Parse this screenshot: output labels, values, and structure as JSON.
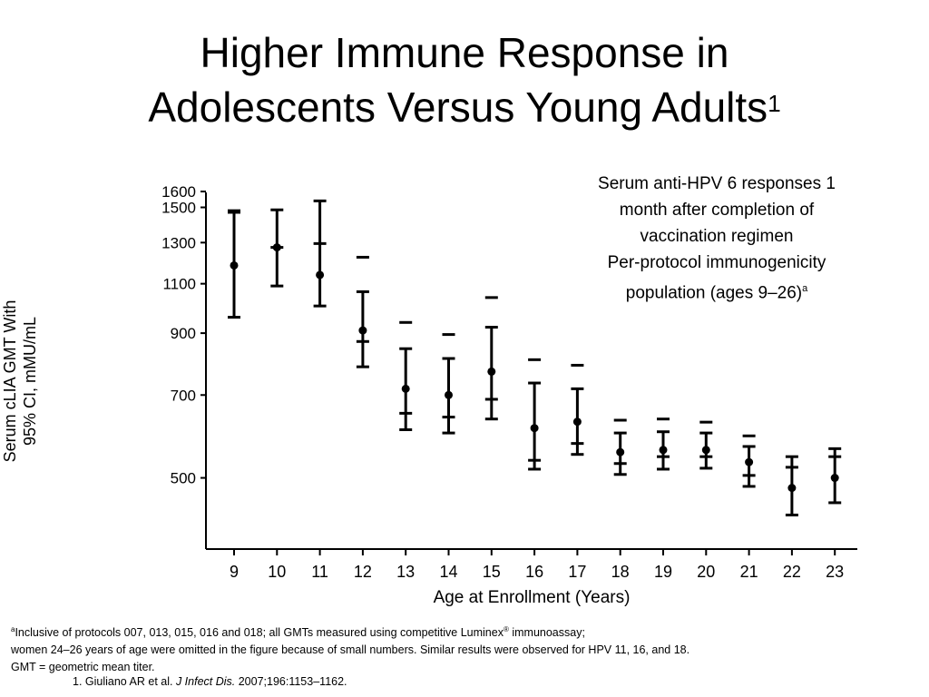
{
  "title": {
    "line1": "Higher Immune Response in",
    "line2": "Adolescents Versus Young Adults",
    "superscript": "1"
  },
  "subtitle": {
    "line1": "Serum anti-HPV 6 responses 1",
    "line2": "month after completion of",
    "line3": "vaccination regimen",
    "line4": "Per-protocol immunogenicity",
    "line5": "population (ages 9–26)",
    "superscript": "a"
  },
  "footnotes": {
    "marker": "a",
    "line1_pre": "Inclusive of protocols 007, 013, 015, 016 and 018; all GMTs measured using competitive Luminex",
    "line1_reg": "®",
    "line1_post": " immunoassay;",
    "line2": "women 24–26 years of age were omitted in the figure because of small numbers. Similar results were observed for HPV 11, 16, and 18.",
    "line3": "GMT = geometric mean titer."
  },
  "reference": {
    "pre": "1. Giuliano AR et al. ",
    "journal": "J Infect Dis.",
    "post": " 2007;196:1153–1162."
  },
  "colors": {
    "marks": "#000000",
    "background": "#ffffff"
  },
  "chart_data": {
    "type": "scatter",
    "error_bars": true,
    "xlabel": "Age at Enrollment (Years)",
    "ylabel_line1": "Serum cLIA GMT With",
    "ylabel_line2": "95% CI, mMU/mL",
    "x_ticks": [
      "9",
      "10",
      "11",
      "12",
      "13",
      "14",
      "15",
      "16",
      "17",
      "18",
      "19",
      "20",
      "21",
      "22",
      "23"
    ],
    "y_ticks": [
      {
        "value": 500,
        "label": "500"
      },
      {
        "value": 700,
        "label": "700"
      },
      {
        "value": 900,
        "label": "900"
      },
      {
        "value": 1100,
        "label": "1100"
      },
      {
        "value": 1300,
        "label": "1300"
      },
      {
        "value": 1500,
        "label": "1500"
      },
      {
        "value": 1600,
        "label": "1600"
      }
    ],
    "y_scale": "log",
    "ylim": [
      375,
      1700
    ],
    "grid": false,
    "points": [
      {
        "x": "9",
        "gmt": 1185,
        "ci_low": 960,
        "ci_high": 1470,
        "dash": 1480
      },
      {
        "x": "10",
        "gmt": 1275,
        "ci_low": 1090,
        "ci_high": 1485,
        "dash": 1275
      },
      {
        "x": "11",
        "gmt": 1140,
        "ci_low": 1005,
        "ci_high": 1540,
        "dash": 1295
      },
      {
        "x": "12",
        "gmt": 910,
        "ci_low": 785,
        "ci_high": 1065,
        "dash": 1225,
        "dash2": 870
      },
      {
        "x": "13",
        "gmt": 718,
        "ci_low": 608,
        "ci_high": 845,
        "dash": 940,
        "dash2": 650
      },
      {
        "x": "14",
        "gmt": 700,
        "ci_low": 600,
        "ci_high": 812,
        "dash": 895,
        "dash2": 640
      },
      {
        "x": "15",
        "gmt": 770,
        "ci_low": 635,
        "ci_high": 922,
        "dash": 1040,
        "dash2": 688
      },
      {
        "x": "16",
        "gmt": 612,
        "ci_low": 518,
        "ci_high": 735,
        "dash": 808,
        "dash2": 537
      },
      {
        "x": "17",
        "gmt": 628,
        "ci_low": 550,
        "ci_high": 718,
        "dash": 790,
        "dash2": 575
      },
      {
        "x": "18",
        "gmt": 555,
        "ci_low": 507,
        "ci_high": 600,
        "dash": 632,
        "dash2": 530
      },
      {
        "x": "19",
        "gmt": 560,
        "ci_low": 518,
        "ci_high": 603,
        "dash": 635,
        "dash2": 545
      },
      {
        "x": "20",
        "gmt": 560,
        "ci_low": 520,
        "ci_high": 600,
        "dash": 627,
        "dash2": 545
      },
      {
        "x": "21",
        "gmt": 533,
        "ci_low": 483,
        "ci_high": 568,
        "dash": 593,
        "dash2": 505
      },
      {
        "x": "22",
        "gmt": 480,
        "ci_low": 430,
        "ci_high": 545,
        "dash": 522
      },
      {
        "x": "23",
        "gmt": 500,
        "ci_low": 452,
        "ci_high": 563,
        "dash": 545
      }
    ]
  }
}
